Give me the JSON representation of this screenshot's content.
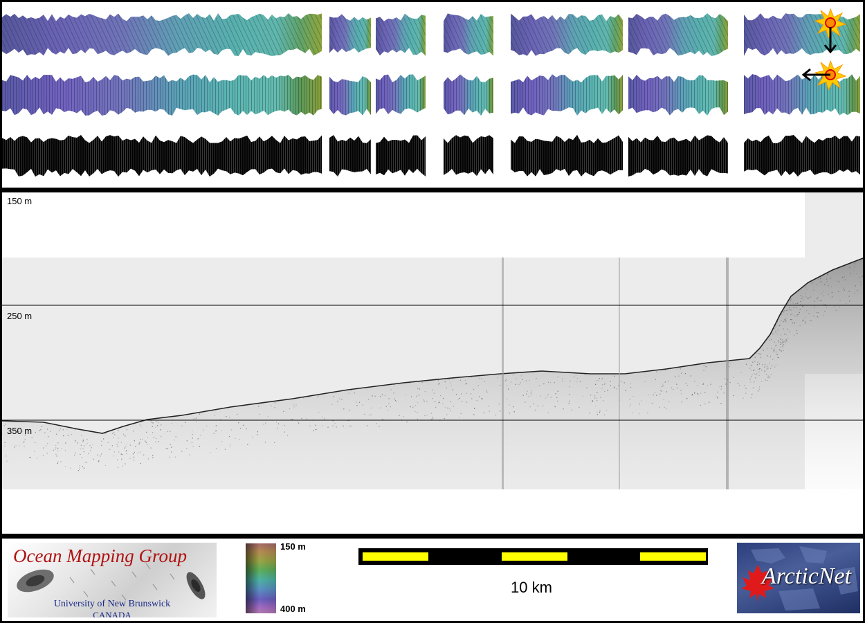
{
  "profile": {
    "depth_labels": [
      "150 m",
      "250 m",
      "350 m"
    ]
  },
  "legend": {
    "omg_logo": {
      "title": "Ocean Mapping Group",
      "university": "University of New Brunswick",
      "country": "CANADA"
    },
    "colorbar": {
      "top_label": "150 m",
      "bottom_label": "400 m"
    },
    "scale_bar": {
      "label": "10 km"
    },
    "arcticnet_logo": {
      "text": "ArcticNet"
    }
  },
  "colors": {
    "frame": "#000000",
    "scale_yellow": "#ffff00",
    "omg_red": "#b01212",
    "omg_blue": "#1a2a88",
    "arcticnet_navy": "#2c3f7c",
    "sun_orange": "#ff9900"
  }
}
